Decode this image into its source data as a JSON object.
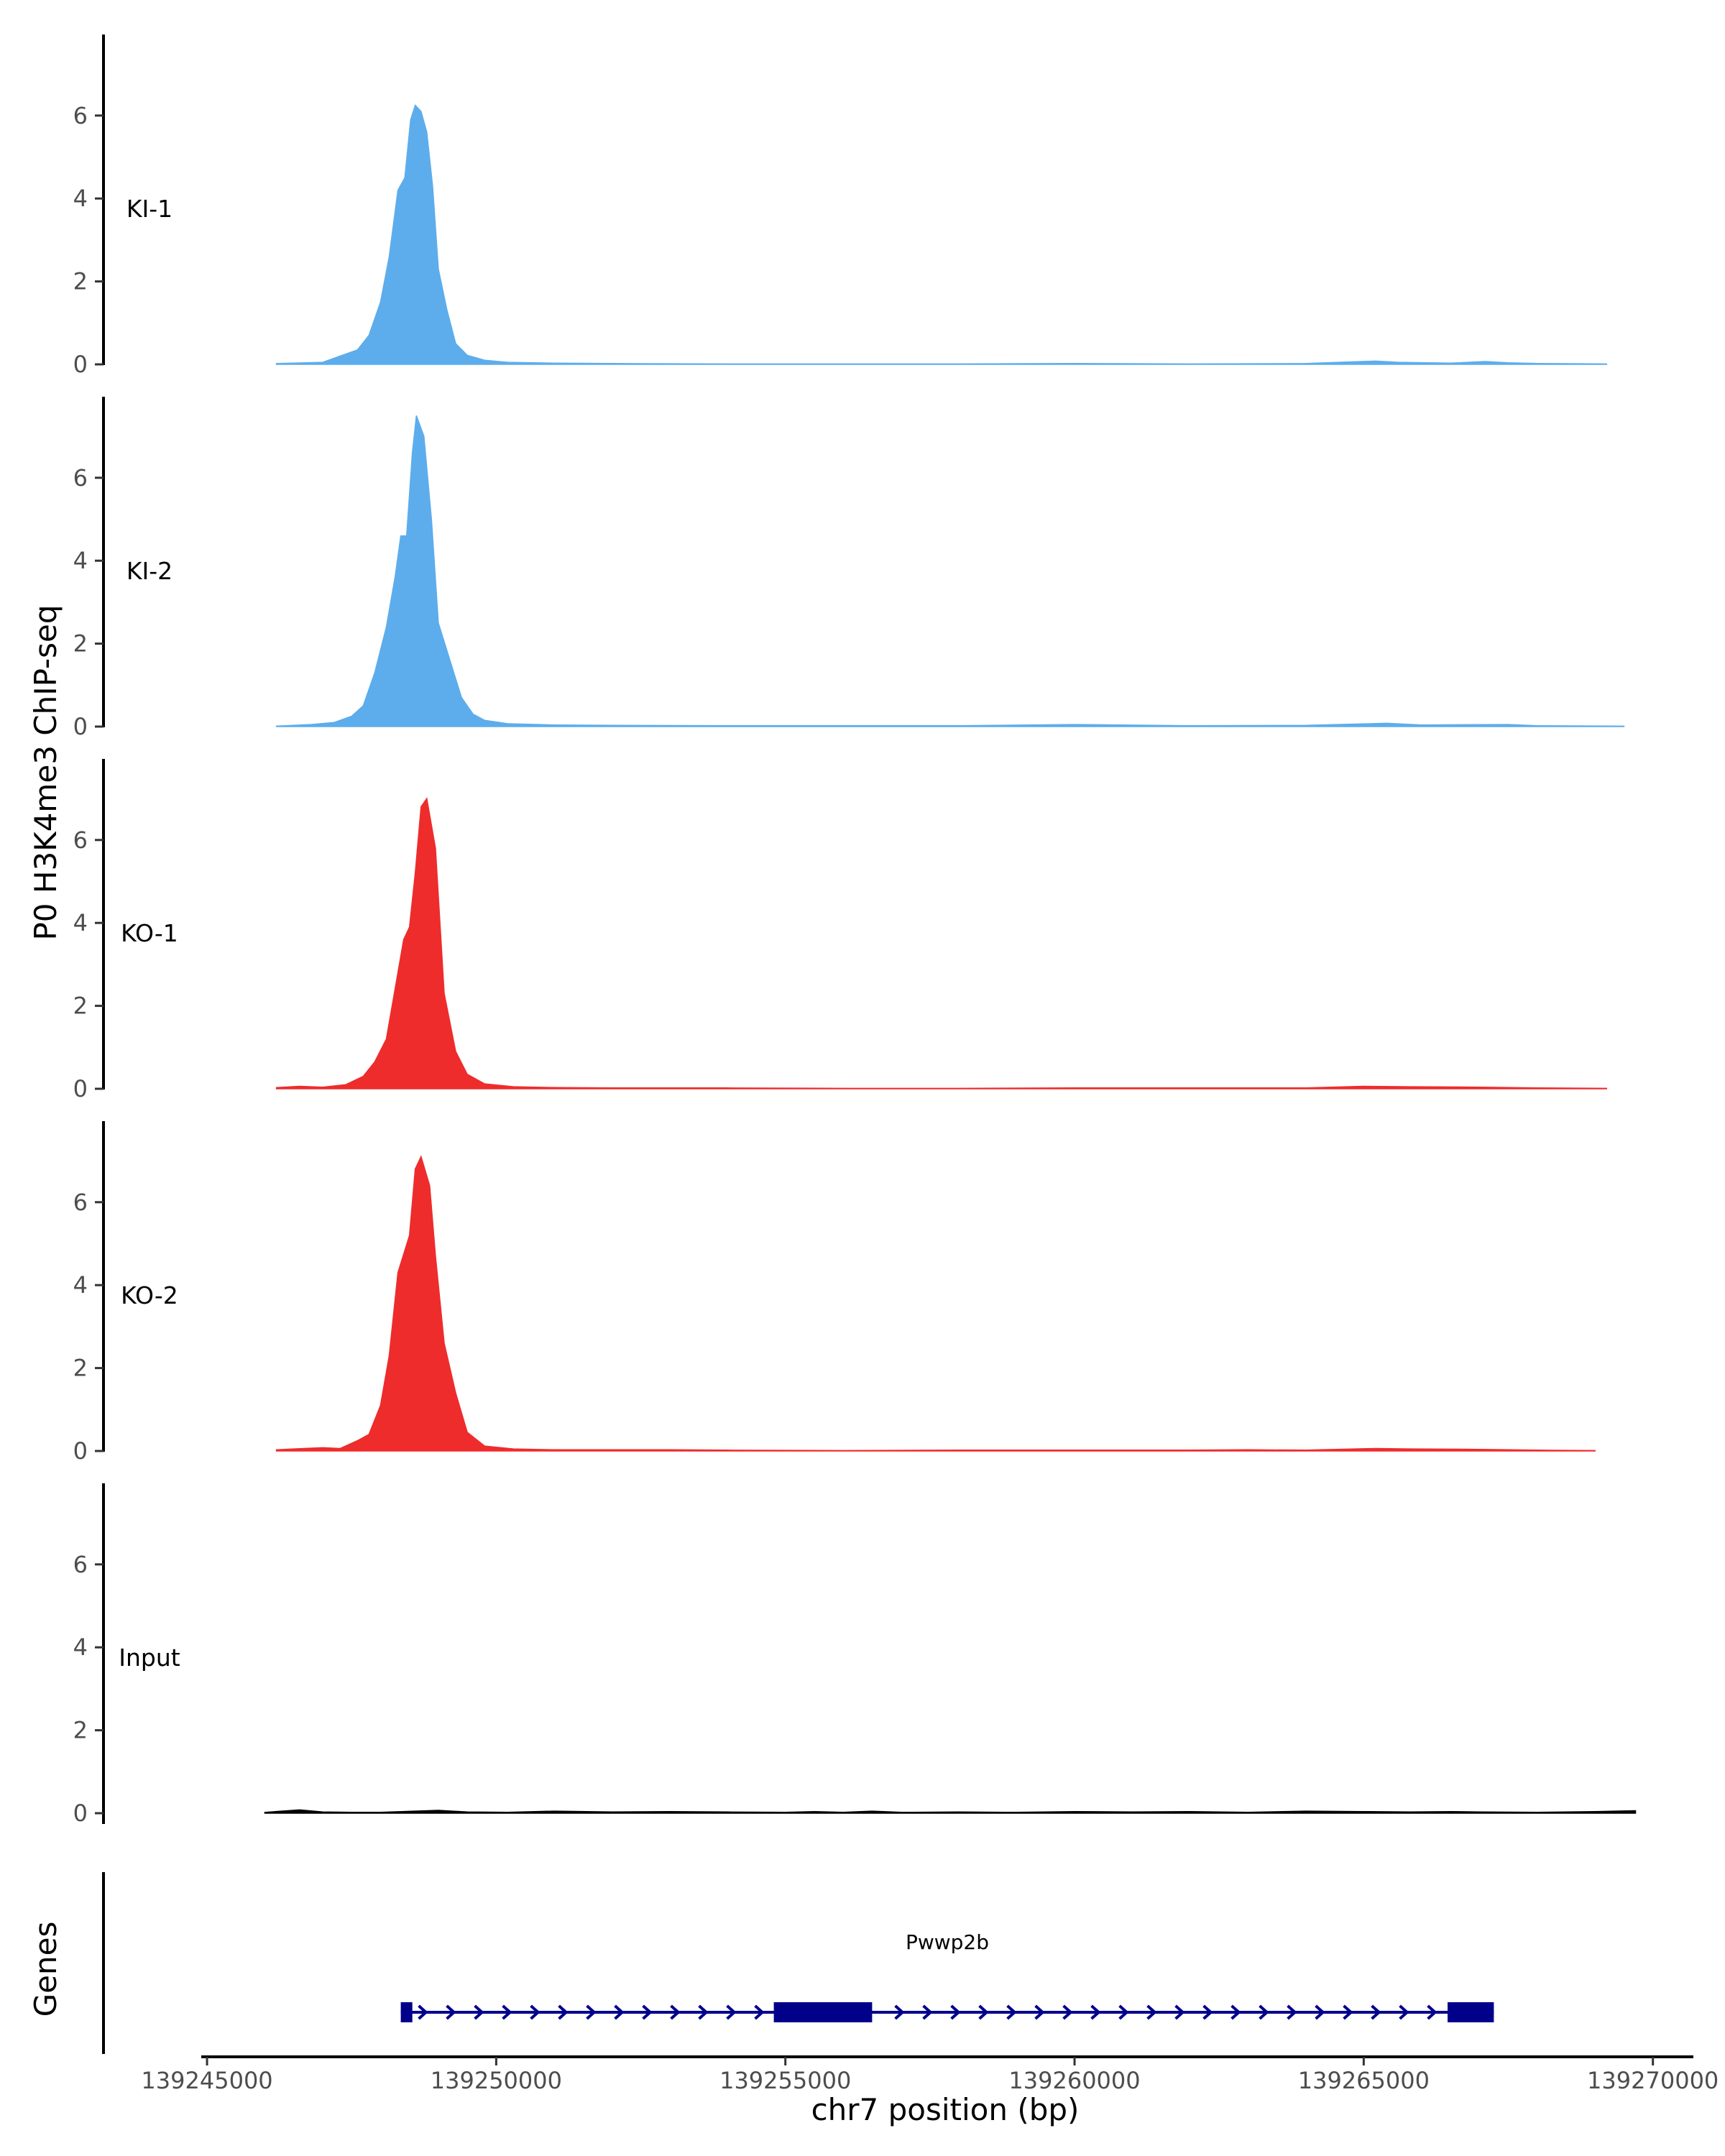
{
  "chart_data": {
    "type": "area",
    "ylabel": "P0 H3K4me3 ChIP-seq",
    "xlabel": "chr7 position (bp)",
    "xlim": [
      139244900,
      139270700
    ],
    "ylim": [
      0,
      7.8
    ],
    "y_ticks": [
      "0",
      "2",
      "4",
      "6"
    ],
    "y_tick_values": [
      0,
      2,
      4,
      6
    ],
    "x_ticks": [
      "139245000",
      "139250000",
      "139255000",
      "139260000",
      "139265000",
      "139270000"
    ],
    "x_tick_values": [
      139245000,
      139250000,
      139255000,
      139260000,
      139265000,
      139270000
    ],
    "grid": false,
    "series": [
      {
        "name": "KI-1",
        "color": "#5DADEC",
        "points": [
          [
            139246200,
            0.02
          ],
          [
            139247000,
            0.05
          ],
          [
            139247300,
            0.2
          ],
          [
            139247600,
            0.35
          ],
          [
            139247800,
            0.7
          ],
          [
            139248000,
            1.5
          ],
          [
            139248150,
            2.6
          ],
          [
            139248300,
            4.2
          ],
          [
            139248420,
            4.5
          ],
          [
            139248520,
            5.9
          ],
          [
            139248600,
            6.25
          ],
          [
            139248700,
            6.1
          ],
          [
            139248800,
            5.6
          ],
          [
            139248900,
            4.3
          ],
          [
            139249000,
            2.3
          ],
          [
            139249150,
            1.3
          ],
          [
            139249300,
            0.5
          ],
          [
            139249500,
            0.22
          ],
          [
            139249800,
            0.1
          ],
          [
            139250200,
            0.05
          ],
          [
            139251000,
            0.03
          ],
          [
            139252000,
            0.02
          ],
          [
            139254000,
            0.01
          ],
          [
            139256000,
            0.01
          ],
          [
            139258000,
            0.01
          ],
          [
            139260000,
            0.02
          ],
          [
            139262000,
            0.01
          ],
          [
            139264000,
            0.02
          ],
          [
            139265200,
            0.08
          ],
          [
            139265600,
            0.05
          ],
          [
            139266500,
            0.03
          ],
          [
            139267100,
            0.07
          ],
          [
            139267500,
            0.04
          ],
          [
            139268000,
            0.02
          ],
          [
            139269200,
            0.01
          ]
        ]
      },
      {
        "name": "KI-2",
        "color": "#5DADEC",
        "points": [
          [
            139246200,
            0.01
          ],
          [
            139246800,
            0.05
          ],
          [
            139247200,
            0.1
          ],
          [
            139247500,
            0.25
          ],
          [
            139247700,
            0.5
          ],
          [
            139247900,
            1.3
          ],
          [
            139248100,
            2.4
          ],
          [
            139248250,
            3.6
          ],
          [
            139248350,
            4.6
          ],
          [
            139248450,
            4.6
          ],
          [
            139248550,
            6.6
          ],
          [
            139248620,
            7.5
          ],
          [
            139248750,
            7.0
          ],
          [
            139248880,
            5.0
          ],
          [
            139249000,
            2.5
          ],
          [
            139249200,
            1.6
          ],
          [
            139249400,
            0.7
          ],
          [
            139249600,
            0.3
          ],
          [
            139249800,
            0.15
          ],
          [
            139250200,
            0.07
          ],
          [
            139251000,
            0.04
          ],
          [
            139252000,
            0.03
          ],
          [
            139254000,
            0.02
          ],
          [
            139256000,
            0.02
          ],
          [
            139258000,
            0.02
          ],
          [
            139260000,
            0.05
          ],
          [
            139262000,
            0.02
          ],
          [
            139264000,
            0.03
          ],
          [
            139265400,
            0.08
          ],
          [
            139266000,
            0.04
          ],
          [
            139267500,
            0.05
          ],
          [
            139268000,
            0.02
          ],
          [
            139269500,
            0.01
          ]
        ]
      },
      {
        "name": "KO-1",
        "color": "#EE2C2C",
        "points": [
          [
            139246200,
            0.03
          ],
          [
            139246600,
            0.06
          ],
          [
            139247000,
            0.04
          ],
          [
            139247400,
            0.1
          ],
          [
            139247700,
            0.3
          ],
          [
            139247900,
            0.65
          ],
          [
            139248100,
            1.2
          ],
          [
            139248250,
            2.4
          ],
          [
            139248400,
            3.6
          ],
          [
            139248500,
            3.9
          ],
          [
            139248600,
            5.2
          ],
          [
            139248700,
            6.8
          ],
          [
            139248800,
            7.0
          ],
          [
            139248950,
            5.8
          ],
          [
            139249100,
            2.3
          ],
          [
            139249300,
            0.9
          ],
          [
            139249500,
            0.35
          ],
          [
            139249800,
            0.12
          ],
          [
            139250300,
            0.05
          ],
          [
            139251000,
            0.03
          ],
          [
            139252000,
            0.02
          ],
          [
            139254000,
            0.02
          ],
          [
            139256000,
            0.01
          ],
          [
            139258000,
            0.01
          ],
          [
            139260000,
            0.02
          ],
          [
            139262000,
            0.02
          ],
          [
            139264000,
            0.02
          ],
          [
            139265000,
            0.06
          ],
          [
            139265800,
            0.05
          ],
          [
            139267000,
            0.04
          ],
          [
            139268000,
            0.02
          ],
          [
            139269200,
            0.01
          ]
        ]
      },
      {
        "name": "KO-2",
        "color": "#EE2C2C",
        "points": [
          [
            139246200,
            0.03
          ],
          [
            139246500,
            0.05
          ],
          [
            139247000,
            0.08
          ],
          [
            139247300,
            0.06
          ],
          [
            139247600,
            0.25
          ],
          [
            139247800,
            0.4
          ],
          [
            139248000,
            1.1
          ],
          [
            139248150,
            2.3
          ],
          [
            139248300,
            4.3
          ],
          [
            139248500,
            5.2
          ],
          [
            139248600,
            6.8
          ],
          [
            139248700,
            7.1
          ],
          [
            139248850,
            6.4
          ],
          [
            139248950,
            4.7
          ],
          [
            139249100,
            2.6
          ],
          [
            139249300,
            1.4
          ],
          [
            139249500,
            0.45
          ],
          [
            139249800,
            0.12
          ],
          [
            139250300,
            0.05
          ],
          [
            139251000,
            0.03
          ],
          [
            139252000,
            0.03
          ],
          [
            139253000,
            0.03
          ],
          [
            139254000,
            0.02
          ],
          [
            139256000,
            0.01
          ],
          [
            139258000,
            0.02
          ],
          [
            139260000,
            0.02
          ],
          [
            139262000,
            0.02
          ],
          [
            139263000,
            0.03
          ],
          [
            139264000,
            0.02
          ],
          [
            139265200,
            0.06
          ],
          [
            139265800,
            0.05
          ],
          [
            139267000,
            0.04
          ],
          [
            139268000,
            0.02
          ],
          [
            139269000,
            0.01
          ]
        ]
      },
      {
        "name": "Input",
        "color": "#000000",
        "points": [
          [
            139246000,
            0.02
          ],
          [
            139246600,
            0.08
          ],
          [
            139247000,
            0.03
          ],
          [
            139247500,
            0.02
          ],
          [
            139248000,
            0.02
          ],
          [
            139249000,
            0.07
          ],
          [
            139249500,
            0.03
          ],
          [
            139250200,
            0.02
          ],
          [
            139251000,
            0.05
          ],
          [
            139252000,
            0.03
          ],
          [
            139253000,
            0.04
          ],
          [
            139254000,
            0.03
          ],
          [
            139255000,
            0.02
          ],
          [
            139255500,
            0.04
          ],
          [
            139256000,
            0.02
          ],
          [
            139256500,
            0.05
          ],
          [
            139257000,
            0.02
          ],
          [
            139258000,
            0.03
          ],
          [
            139259000,
            0.02
          ],
          [
            139260000,
            0.04
          ],
          [
            139261000,
            0.03
          ],
          [
            139262000,
            0.04
          ],
          [
            139263000,
            0.02
          ],
          [
            139264000,
            0.05
          ],
          [
            139265000,
            0.04
          ],
          [
            139265800,
            0.03
          ],
          [
            139266500,
            0.04
          ],
          [
            139267000,
            0.03
          ],
          [
            139268000,
            0.02
          ],
          [
            139269000,
            0.04
          ],
          [
            139269700,
            0.06
          ]
        ]
      }
    ],
    "genes": {
      "track_label": "Genes",
      "color": "#00008B",
      "items": [
        {
          "name": "Pwwp2b",
          "strand": "+",
          "start": 139248350,
          "end": 139267250,
          "exons": [
            [
              139248350,
              139248550
            ],
            [
              139254800,
              139256500
            ],
            [
              139266450,
              139267250
            ]
          ]
        }
      ]
    }
  }
}
